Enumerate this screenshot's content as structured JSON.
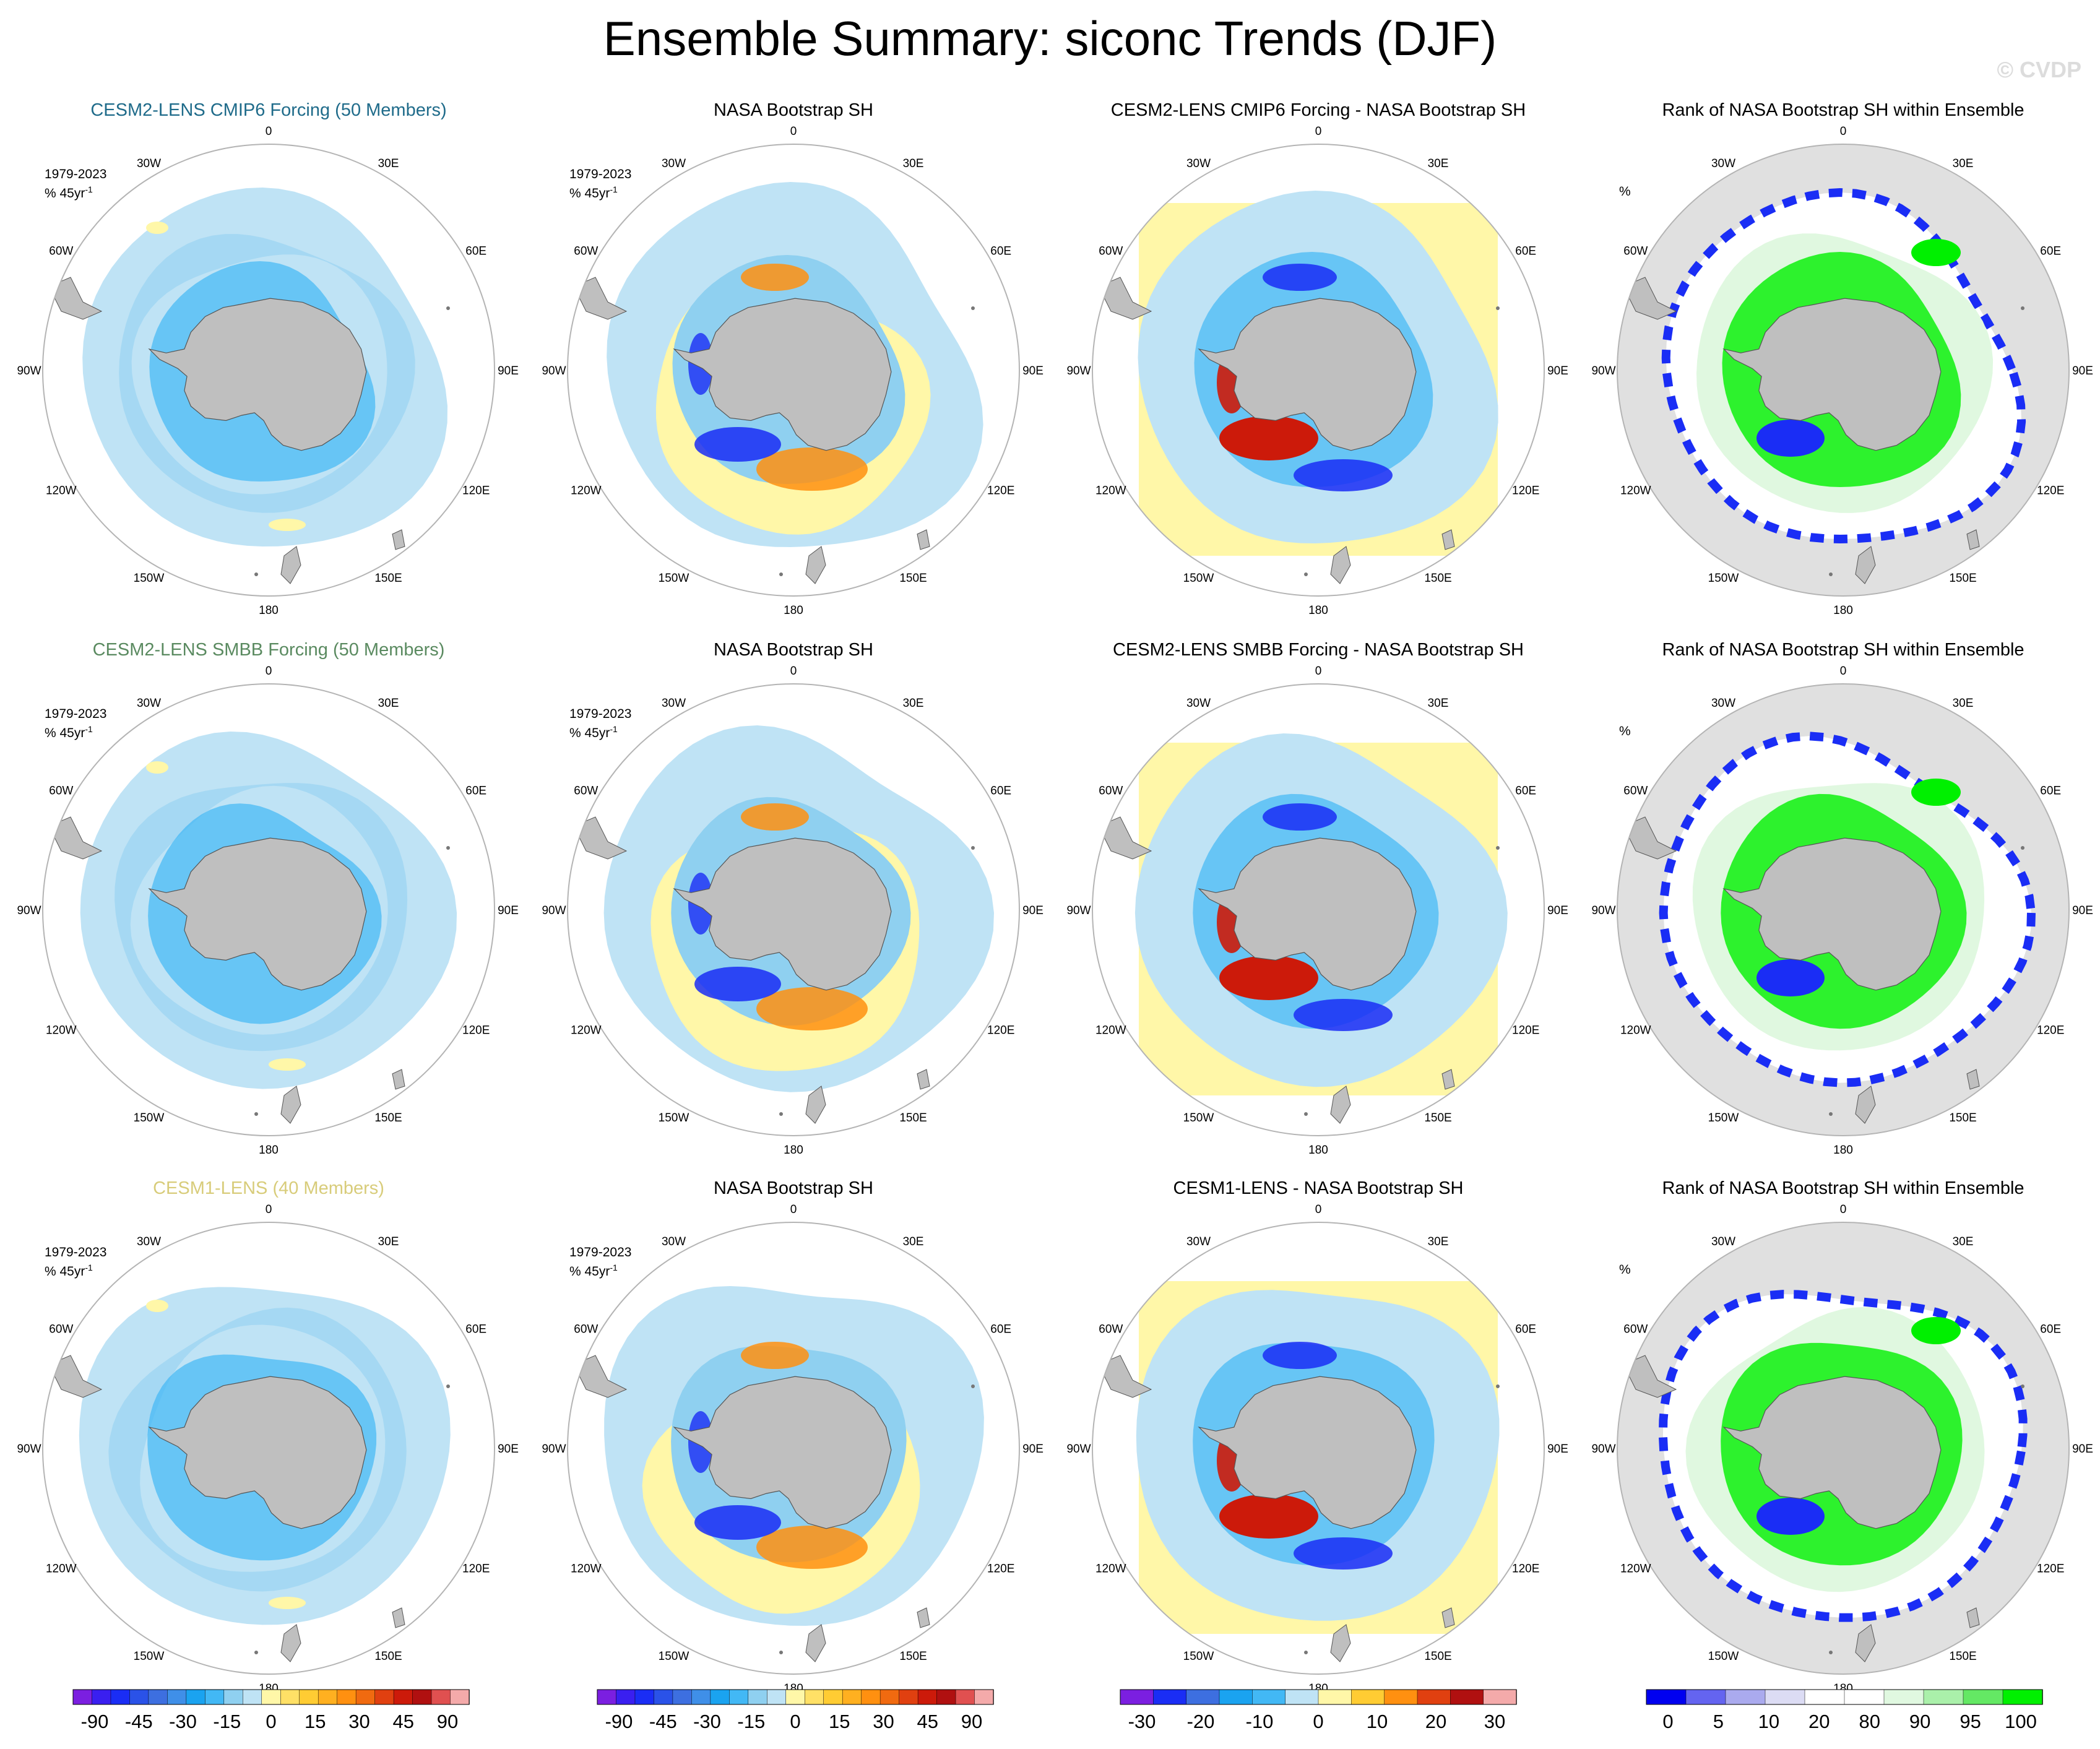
{
  "title": "Ensemble Summary: siconc Trends (DJF)",
  "watermark": "© CVDP",
  "lon_labels": [
    "0",
    "30E",
    "60E",
    "90E",
    "120E",
    "150E",
    "180",
    "150W",
    "120W",
    "90W",
    "60W",
    "30W"
  ],
  "rows": [
    {
      "panels": [
        {
          "title": "CESM2-LENS CMIP6 Forcing (50 Members)",
          "title_color": "#1f6b8a",
          "kind": "ensemble",
          "period": "1979-2023",
          "units": "% 45yr",
          "units_sup": "-1"
        },
        {
          "title": "NASA Bootstrap SH",
          "title_color": "#000000",
          "kind": "obs",
          "period": "1979-2023",
          "units": "% 45yr",
          "units_sup": "-1"
        },
        {
          "title": "CESM2-LENS CMIP6 Forcing - NASA Bootstrap SH",
          "title_color": "#000000",
          "kind": "diff"
        },
        {
          "title": "Rank of NASA Bootstrap SH within Ensemble",
          "title_color": "#000000",
          "kind": "rank",
          "units": "%"
        }
      ]
    },
    {
      "panels": [
        {
          "title": "CESM2-LENS SMBB Forcing (50 Members)",
          "title_color": "#5a8a60",
          "kind": "ensemble",
          "period": "1979-2023",
          "units": "% 45yr",
          "units_sup": "-1"
        },
        {
          "title": "NASA Bootstrap SH",
          "title_color": "#000000",
          "kind": "obs",
          "period": "1979-2023",
          "units": "% 45yr",
          "units_sup": "-1"
        },
        {
          "title": "CESM2-LENS SMBB Forcing - NASA Bootstrap SH",
          "title_color": "#000000",
          "kind": "diff"
        },
        {
          "title": "Rank of NASA Bootstrap SH within Ensemble",
          "title_color": "#000000",
          "kind": "rank",
          "units": "%"
        }
      ]
    },
    {
      "panels": [
        {
          "title": "CESM1-LENS (40 Members)",
          "title_color": "#d8cc7a",
          "kind": "ensemble",
          "period": "1979-2023",
          "units": "% 45yr",
          "units_sup": "-1"
        },
        {
          "title": "NASA Bootstrap SH",
          "title_color": "#000000",
          "kind": "obs",
          "period": "1979-2023",
          "units": "% 45yr",
          "units_sup": "-1"
        },
        {
          "title": "CESM1-LENS - NASA Bootstrap SH",
          "title_color": "#000000",
          "kind": "diff"
        },
        {
          "title": "Rank of NASA Bootstrap SH within Ensemble",
          "title_color": "#000000",
          "kind": "rank",
          "units": "%"
        }
      ]
    }
  ],
  "colorbars": [
    {
      "colors": [
        "#7b1fe0",
        "#3a1ff0",
        "#1a2df5",
        "#2a52e8",
        "#3d6fe0",
        "#3f8fe8",
        "#1aa3f0",
        "#42b8f5",
        "#8fd0f0",
        "#bfe3f5",
        "#fff7a8",
        "#ffe066",
        "#ffcc33",
        "#ffb020",
        "#ff9010",
        "#f06a10",
        "#e04010",
        "#cc1a0a",
        "#b01010",
        "#e05050",
        "#f4aaaa"
      ],
      "ticks": [
        "-90",
        "-45",
        "-30",
        "-15",
        "0",
        "15",
        "30",
        "45",
        "90"
      ]
    },
    {
      "colors": [
        "#7b1fe0",
        "#3a1ff0",
        "#1a2df5",
        "#2a52e8",
        "#3d6fe0",
        "#3f8fe8",
        "#1aa3f0",
        "#42b8f5",
        "#8fd0f0",
        "#bfe3f5",
        "#fff7a8",
        "#ffe066",
        "#ffcc33",
        "#ffb020",
        "#ff9010",
        "#f06a10",
        "#e04010",
        "#cc1a0a",
        "#b01010",
        "#e05050",
        "#f4aaaa"
      ],
      "ticks": [
        "-90",
        "-45",
        "-30",
        "-15",
        "0",
        "15",
        "30",
        "45",
        "90"
      ]
    },
    {
      "colors": [
        "#7b1fe0",
        "#1a2df5",
        "#3d6fe0",
        "#1aa3f0",
        "#42b8f5",
        "#bfe3f5",
        "#fff7a8",
        "#ffcc33",
        "#ff9010",
        "#e04010",
        "#b01010",
        "#f4aaaa"
      ],
      "ticks": [
        "-30",
        "-20",
        "-10",
        "0",
        "10",
        "20",
        "30"
      ]
    },
    {
      "colors": [
        "#0000f0",
        "#6464f0",
        "#aaaaee",
        "#dcdcf4",
        "#ffffff",
        "#ffffff",
        "#e0f8e0",
        "#aaf0aa",
        "#64e864",
        "#00f000"
      ],
      "ticks": [
        "0",
        "5",
        "10",
        "20",
        "80",
        "90",
        "95",
        "100"
      ]
    }
  ],
  "colors": {
    "land": "#bfbfbf",
    "outside": "#e0e0e0",
    "frame": "#b4b4b4",
    "ice_light": "#bfe3f5",
    "ice_mid": "#8fd0f0",
    "ice_dark": "#42b8f5",
    "yellow": "#fff7a8",
    "orange": "#ff9010",
    "red": "#cc1a0a",
    "blue": "#1a2df5",
    "green": "#00f000",
    "pale_green": "#e0f8e0"
  }
}
